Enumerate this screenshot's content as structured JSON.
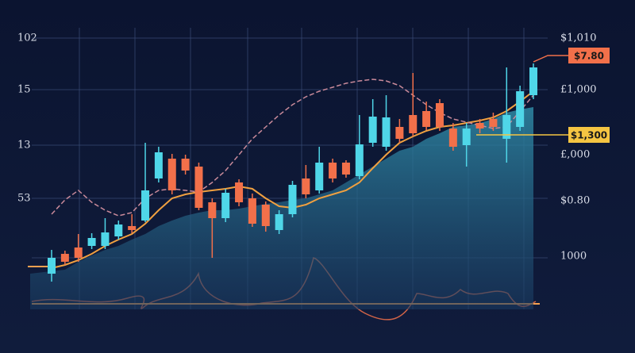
{
  "chart_data": {
    "type": "candlestick",
    "ylim": [
      0,
      350
    ],
    "up_color": "#4fd6e8",
    "down_color": "#f2704a",
    "open": [
      45,
      70,
      78,
      80,
      80,
      92,
      105,
      112,
      165,
      190,
      190,
      180,
      135,
      115,
      160,
      140,
      132,
      100,
      120,
      165,
      150,
      185,
      185,
      168,
      210,
      205,
      230,
      245,
      250,
      260,
      228,
      207,
      235,
      240,
      215,
      230,
      270
    ],
    "close": [
      65,
      60,
      65,
      90,
      97,
      107,
      100,
      150,
      198,
      150,
      175,
      128,
      115,
      147,
      135,
      108,
      105,
      120,
      157,
      145,
      185,
      165,
      170,
      208,
      243,
      242,
      215,
      222,
      230,
      230,
      205,
      228,
      228,
      230,
      245,
      275,
      305
    ],
    "high": [
      75,
      74,
      95,
      96,
      115,
      112,
      120,
      210,
      205,
      196,
      195,
      185,
      140,
      152,
      164,
      146,
      136,
      125,
      162,
      182,
      205,
      190,
      188,
      245,
      265,
      270,
      240,
      298,
      262,
      265,
      235,
      235,
      240,
      248,
      305,
      282,
      310
    ],
    "low": [
      35,
      56,
      60,
      76,
      76,
      88,
      96,
      110,
      160,
      145,
      170,
      125,
      65,
      110,
      130,
      104,
      98,
      95,
      116,
      140,
      146,
      160,
      166,
      164,
      205,
      200,
      210,
      218,
      226,
      225,
      200,
      180,
      222,
      225,
      185,
      225,
      265
    ],
    "area": {
      "color": "#2a6f8a",
      "values": [
        45,
        50,
        60,
        68,
        75,
        80,
        88,
        95,
        105,
        112,
        118,
        122,
        125,
        125,
        127,
        130,
        133,
        135,
        138,
        140,
        145,
        150,
        160,
        170,
        180,
        190,
        200,
        205,
        215,
        222,
        230,
        232,
        235,
        240,
        248,
        252,
        255
      ]
    },
    "lines": [
      {
        "color": "#f0a040",
        "values": [
          52,
          56,
          62,
          70,
          80,
          88,
          95,
          108,
          125,
          140,
          145,
          148,
          150,
          152,
          155,
          152,
          140,
          130,
          128,
          132,
          140,
          145,
          150,
          160,
          178,
          195,
          210,
          218,
          225,
          230,
          232,
          235,
          238,
          242,
          250,
          262,
          275
        ]
      },
      {
        "color": "#c98a9a",
        "dashed": true,
        "values": [
          120,
          138,
          150,
          135,
          125,
          118,
          122,
          140,
          150,
          152,
          150,
          148,
          160,
          175,
          195,
          215,
          230,
          245,
          258,
          268,
          275,
          280,
          285,
          288,
          290,
          288,
          282,
          270,
          258,
          248,
          240,
          236,
          232,
          228,
          230,
          250,
          270
        ]
      }
    ],
    "left_labels": [
      "102",
      "15",
      "13",
      "53"
    ],
    "right_labels": [
      "$1,010",
      "£1,000",
      "£,000",
      "$0.80",
      "1000"
    ],
    "tags": [
      {
        "text": "$7.80",
        "color": "#f2704a"
      },
      {
        "text": "$1,300",
        "color": "#f5c542"
      }
    ]
  }
}
